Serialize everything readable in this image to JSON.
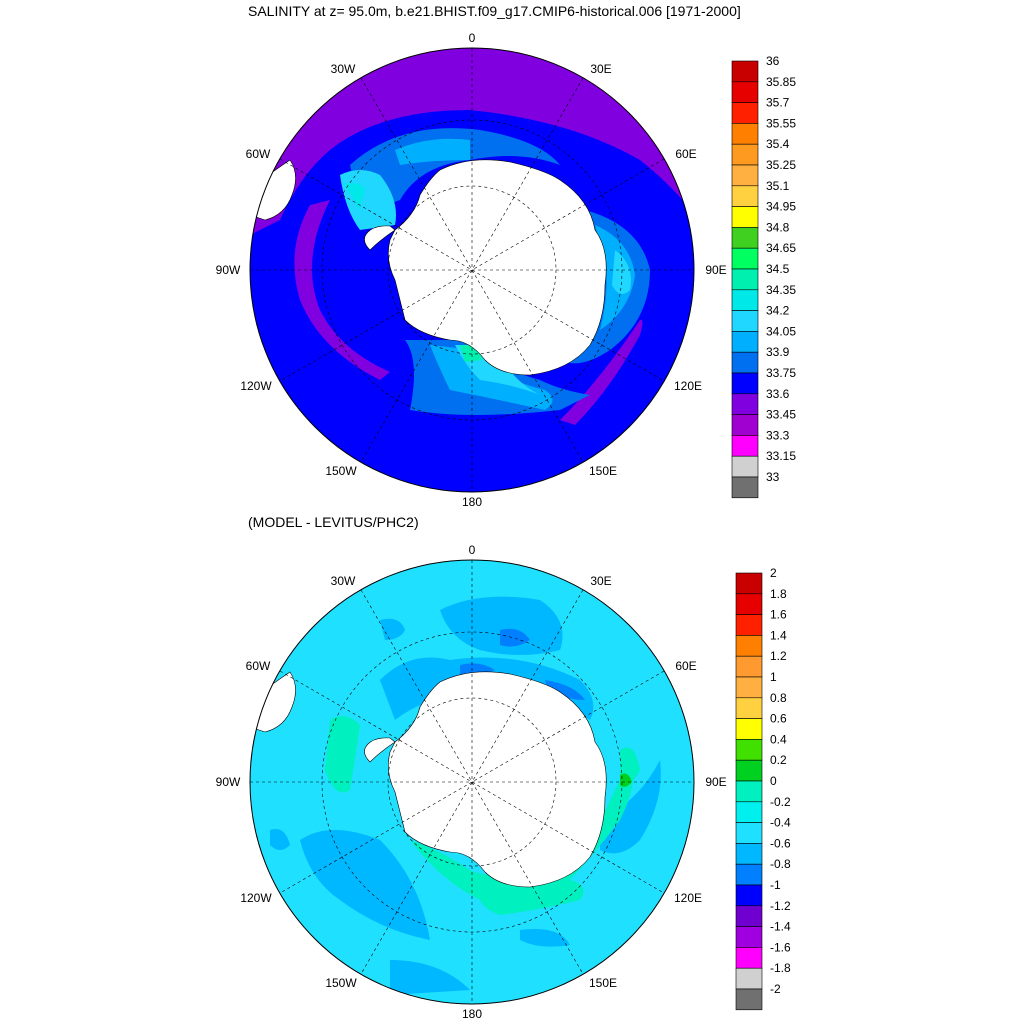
{
  "panel1": {
    "title": "SALINITY at z=  95.0m, b.e21.BHIST.f09_g17.CMIP6-historical.006 [1971-2000]",
    "lon_labels": [
      "0",
      "30E",
      "60E",
      "90E",
      "120E",
      "150E",
      "180",
      "150W",
      "120W",
      "90W",
      "60W",
      "30W"
    ],
    "colorbar": {
      "labels": [
        "36",
        "35.85",
        "35.7",
        "35.55",
        "35.4",
        "35.25",
        "35.1",
        "34.95",
        "34.8",
        "34.65",
        "34.5",
        "34.35",
        "34.2",
        "34.05",
        "33.9",
        "33.75",
        "33.6",
        "33.45",
        "33.3",
        "33.15",
        "33"
      ],
      "colors": [
        "#c80000",
        "#e60000",
        "#ff2000",
        "#ff8000",
        "#ff9a20",
        "#ffb040",
        "#ffd040",
        "#ffff00",
        "#40d020",
        "#00ff60",
        "#00f0b0",
        "#00e8e8",
        "#20d8ff",
        "#00b0ff",
        "#0070f0",
        "#0000ff",
        "#8000e0",
        "#a000d0",
        "#ff00ff",
        "#d0d0d0",
        "#707070"
      ]
    }
  },
  "panel2": {
    "title": "(MODEL - LEVITUS/PHC2)",
    "lon_labels": [
      "0",
      "30E",
      "60E",
      "90E",
      "120E",
      "150E",
      "180",
      "150W",
      "120W",
      "90W",
      "60W",
      "30W"
    ],
    "colorbar": {
      "labels": [
        "2",
        "1.8",
        "1.6",
        "1.4",
        "1.2",
        "1",
        "0.8",
        "0.6",
        "0.4",
        "0.2",
        "0",
        "-0.2",
        "-0.4",
        "-0.6",
        "-0.8",
        "-1",
        "-1.2",
        "-1.4",
        "-1.6",
        "-1.8",
        "-2"
      ],
      "colors": [
        "#c80000",
        "#e60000",
        "#ff2000",
        "#ff8000",
        "#ff9a30",
        "#ffb040",
        "#ffd040",
        "#ffff00",
        "#40e000",
        "#00d020",
        "#00f0c0",
        "#00f0f0",
        "#20e0ff",
        "#00b8ff",
        "#0080ff",
        "#0000ff",
        "#7000d0",
        "#a000e0",
        "#ff00ff",
        "#d0d0d0",
        "#707070"
      ]
    }
  },
  "colors": {
    "land": "#ffffff",
    "ocean_dominant_1": "#0000ff",
    "ocean_dominant_2": "#20e0ff"
  }
}
